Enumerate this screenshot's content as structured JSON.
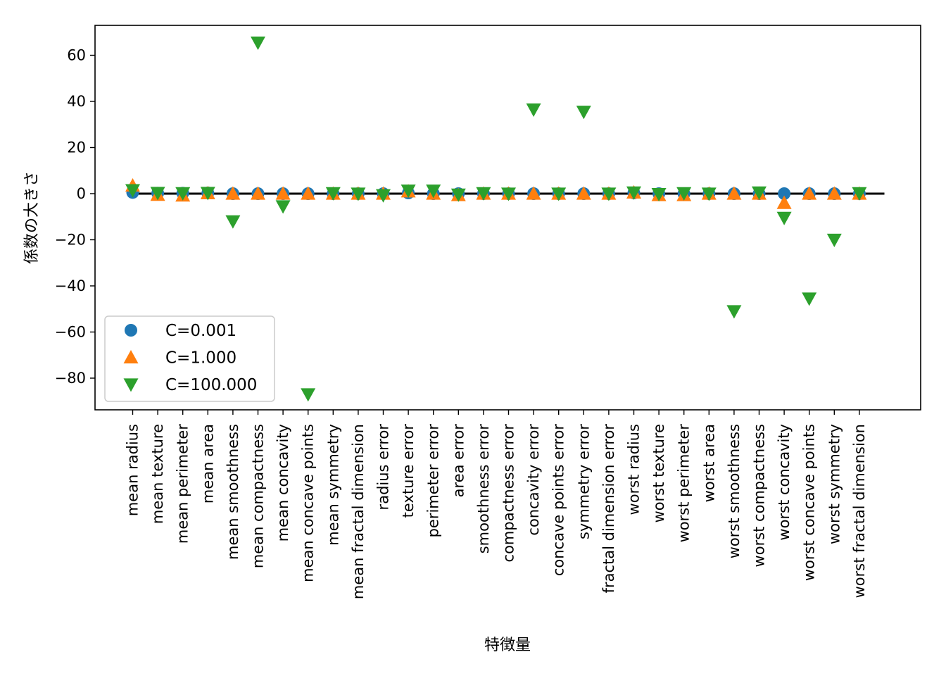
{
  "chart_data": {
    "type": "scatter",
    "xlabel": "特徴量",
    "ylabel": "係数の大きさ",
    "ylim": [
      -95,
      73
    ],
    "yticks": [
      60,
      40,
      20,
      0,
      -20,
      -40,
      -60,
      -80
    ],
    "ytick_labels": [
      "60",
      "40",
      "20",
      "0",
      "−20",
      "−40",
      "−60",
      "−80"
    ],
    "reference_line_y": 0,
    "legend_position": "lower-left",
    "categories": [
      "mean radius",
      "mean texture",
      "mean perimeter",
      "mean area",
      "mean smoothness",
      "mean compactness",
      "mean concavity",
      "mean concave points",
      "mean symmetry",
      "mean fractal dimension",
      "radius error",
      "texture error",
      "perimeter error",
      "area error",
      "smoothness error",
      "compactness error",
      "concavity error",
      "concave points error",
      "symmetry error",
      "fractal dimension error",
      "worst radius",
      "worst texture",
      "worst perimeter",
      "worst area",
      "worst smoothness",
      "worst compactness",
      "worst concavity",
      "worst concave points",
      "worst symmetry",
      "worst fractal dimension"
    ],
    "series": [
      {
        "name": "C=0.001",
        "marker": "circle",
        "color": "#1f77b4",
        "values": [
          0.5,
          0.2,
          0.2,
          0.3,
          0.0,
          0.0,
          0.0,
          0.0,
          0.0,
          0.0,
          0.0,
          0.3,
          0.0,
          0.0,
          0.0,
          0.0,
          0.0,
          0.0,
          0.0,
          0.0,
          0.3,
          0.0,
          0.0,
          0.0,
          0.0,
          0.0,
          0.0,
          0.0,
          0.0,
          0.0
        ]
      },
      {
        "name": "C=1.000",
        "marker": "triangle-up",
        "color": "#ff7f0e",
        "values": [
          3.5,
          -0.5,
          -0.8,
          0.2,
          0.0,
          0.0,
          0.0,
          0.0,
          0.0,
          0.0,
          0.0,
          1.0,
          0.0,
          -0.6,
          0.0,
          0.0,
          0.0,
          0.0,
          0.0,
          0.0,
          0.5,
          -0.6,
          -0.6,
          0.0,
          0.0,
          0.0,
          -4.0,
          0.0,
          0.0,
          0.0
        ]
      },
      {
        "name": "C=100.000",
        "marker": "triangle-down",
        "color": "#2ca02c",
        "values": [
          1.5,
          0.3,
          0.2,
          0.3,
          -12.0,
          65.5,
          -5.5,
          -87.0,
          0.2,
          0.0,
          -0.7,
          1.3,
          1.3,
          -0.4,
          0.2,
          0.0,
          36.5,
          0.0,
          35.5,
          0.0,
          0.5,
          -0.2,
          0.2,
          0.0,
          -51.0,
          0.5,
          -10.5,
          -45.5,
          -20.0,
          0.2
        ]
      }
    ]
  }
}
